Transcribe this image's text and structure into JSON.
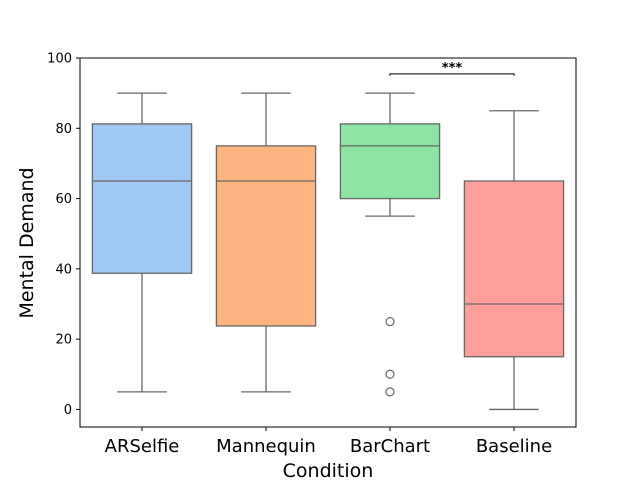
{
  "chart_data": {
    "type": "box",
    "xlabel": "Condition",
    "ylabel": "Mental Demand",
    "ylim": [
      -5,
      100
    ],
    "yticks": [
      0,
      20,
      40,
      60,
      80,
      100
    ],
    "grid": false,
    "categories": [
      "ARSelfie",
      "Mannequin",
      "BarChart",
      "Baseline"
    ],
    "boxes": [
      {
        "category": "ARSelfie",
        "min": 5,
        "q1": 38.75,
        "median": 65,
        "q3": 81.25,
        "max": 90,
        "outliers": [],
        "color": "#a1c9f4"
      },
      {
        "category": "Mannequin",
        "min": 5,
        "q1": 23.75,
        "median": 65,
        "q3": 75,
        "max": 90,
        "outliers": [],
        "color": "#ffb482"
      },
      {
        "category": "BarChart",
        "min": 55,
        "q1": 60,
        "median": 75,
        "q3": 81.25,
        "max": 90,
        "outliers": [
          25,
          10,
          5
        ],
        "color": "#8de5a1"
      },
      {
        "category": "Baseline",
        "min": 0,
        "q1": 15,
        "median": 30,
        "q3": 65,
        "max": 85,
        "outliers": [],
        "color": "#ff9f9b"
      }
    ],
    "annotations": [
      {
        "from": "BarChart",
        "to": "Baseline",
        "y": 95.5,
        "text": "***"
      }
    ]
  }
}
